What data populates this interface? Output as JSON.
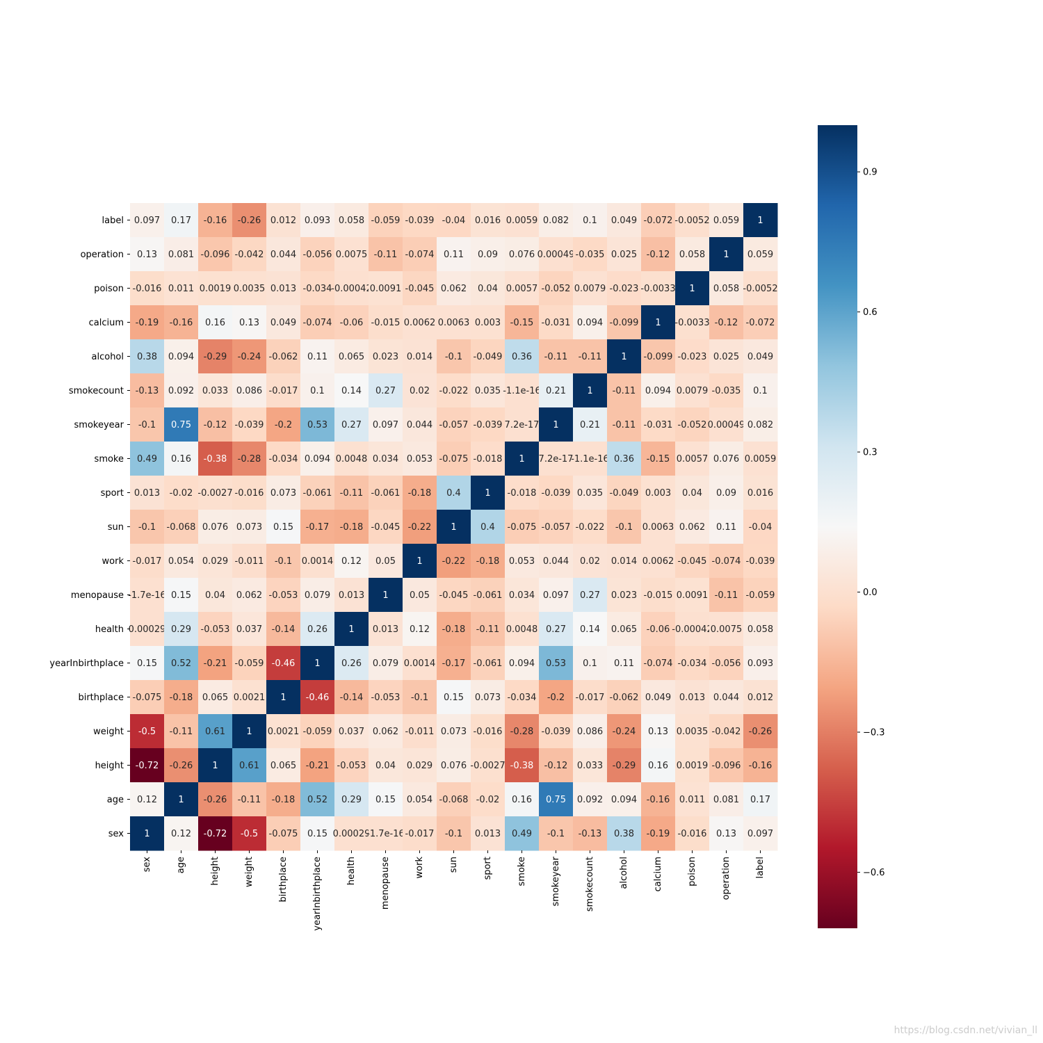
{
  "chart_data": {
    "type": "heatmap",
    "x_categories": [
      "sex",
      "age",
      "height",
      "weight",
      "birthplace",
      "yearInbirthplace",
      "health",
      "menopause",
      "work",
      "sun",
      "sport",
      "smoke",
      "smokeyear",
      "smokecount",
      "alcohol",
      "calcium",
      "poison",
      "operation",
      "label"
    ],
    "y_categories": [
      "label",
      "operation",
      "poison",
      "calcium",
      "alcohol",
      "smokecount",
      "smokeyear",
      "smoke",
      "sport",
      "sun",
      "work",
      "menopause",
      "health",
      "yearInbirthplace",
      "birthplace",
      "weight",
      "height",
      "age",
      "sex"
    ],
    "values": [
      [
        0.097,
        0.17,
        -0.16,
        -0.26,
        0.012,
        0.093,
        0.058,
        -0.059,
        -0.039,
        -0.04,
        0.016,
        0.0059,
        0.082,
        0.1,
        0.049,
        -0.072,
        -0.0052,
        0.059,
        1
      ],
      [
        0.13,
        0.081,
        -0.096,
        -0.042,
        0.044,
        -0.056,
        0.0075,
        -0.11,
        -0.074,
        0.11,
        0.09,
        0.076,
        0.00049,
        -0.035,
        0.025,
        -0.12,
        0.058,
        1,
        0.059
      ],
      [
        -0.016,
        0.011,
        0.0019,
        0.0035,
        0.013,
        -0.034,
        -0.00042,
        0.0091,
        -0.045,
        0.062,
        0.04,
        0.0057,
        -0.052,
        0.0079,
        -0.023,
        -0.0033,
        1,
        0.058,
        -0.0052
      ],
      [
        -0.19,
        -0.16,
        0.16,
        0.13,
        0.049,
        -0.074,
        -0.06,
        -0.015,
        0.0062,
        0.0063,
        0.003,
        -0.15,
        -0.031,
        0.094,
        -0.099,
        1,
        -0.0033,
        -0.12,
        -0.072
      ],
      [
        0.38,
        0.094,
        -0.29,
        -0.24,
        -0.062,
        0.11,
        0.065,
        0.023,
        0.014,
        -0.1,
        -0.049,
        0.36,
        -0.11,
        -0.11,
        1,
        -0.099,
        -0.023,
        0.025,
        0.049
      ],
      [
        -0.13,
        0.092,
        0.033,
        0.086,
        -0.017,
        0.1,
        0.14,
        0.27,
        0.02,
        -0.022,
        0.035,
        -1.1e-16,
        0.21,
        1,
        -0.11,
        0.094,
        0.0079,
        -0.035,
        0.1
      ],
      [
        -0.1,
        0.75,
        -0.12,
        -0.039,
        -0.2,
        0.53,
        0.27,
        0.097,
        0.044,
        -0.057,
        -0.039,
        7.2e-17,
        1,
        0.21,
        -0.11,
        -0.031,
        -0.052,
        0.00049,
        0.082
      ],
      [
        0.49,
        0.16,
        -0.38,
        -0.28,
        -0.034,
        0.094,
        0.0048,
        0.034,
        0.053,
        -0.075,
        -0.018,
        1,
        7.2e-17,
        -1.1e-16,
        0.36,
        -0.15,
        0.0057,
        0.076,
        0.0059
      ],
      [
        0.013,
        -0.02,
        -0.0027,
        -0.016,
        0.073,
        -0.061,
        -0.11,
        -0.061,
        -0.18,
        0.4,
        1,
        -0.018,
        -0.039,
        0.035,
        -0.049,
        0.003,
        0.04,
        0.09,
        0.016
      ],
      [
        -0.1,
        -0.068,
        0.076,
        0.073,
        0.15,
        -0.17,
        -0.18,
        -0.045,
        -0.22,
        1,
        0.4,
        -0.075,
        -0.057,
        -0.022,
        -0.1,
        0.0063,
        0.062,
        0.11,
        -0.04
      ],
      [
        -0.017,
        0.054,
        0.029,
        -0.011,
        -0.1,
        0.0014,
        0.12,
        0.05,
        1,
        -0.22,
        -0.18,
        0.053,
        0.044,
        0.02,
        0.014,
        0.0062,
        -0.045,
        -0.074,
        -0.039
      ],
      [
        -1.7e-16,
        0.15,
        0.04,
        0.062,
        -0.053,
        0.079,
        0.013,
        1,
        0.05,
        -0.045,
        -0.061,
        0.034,
        0.097,
        0.27,
        0.023,
        -0.015,
        0.0091,
        -0.11,
        -0.059
      ],
      [
        0.00029,
        0.29,
        -0.053,
        0.037,
        -0.14,
        0.26,
        1,
        0.013,
        0.12,
        -0.18,
        -0.11,
        0.0048,
        0.27,
        0.14,
        0.065,
        -0.06,
        -0.00042,
        0.0075,
        0.058
      ],
      [
        0.15,
        0.52,
        -0.21,
        -0.059,
        -0.46,
        1,
        0.26,
        0.079,
        0.0014,
        -0.17,
        -0.061,
        0.094,
        0.53,
        0.1,
        0.11,
        -0.074,
        -0.034,
        -0.056,
        0.093
      ],
      [
        -0.075,
        -0.18,
        0.065,
        0.0021,
        1,
        -0.46,
        -0.14,
        -0.053,
        -0.1,
        0.15,
        0.073,
        -0.034,
        -0.2,
        -0.017,
        -0.062,
        0.049,
        0.013,
        0.044,
        0.012
      ],
      [
        -0.5,
        -0.11,
        0.61,
        1,
        0.0021,
        -0.059,
        0.037,
        0.062,
        -0.011,
        0.073,
        -0.016,
        -0.28,
        -0.039,
        0.086,
        -0.24,
        0.13,
        0.0035,
        -0.042,
        -0.26
      ],
      [
        -0.72,
        -0.26,
        1,
        0.61,
        0.065,
        -0.21,
        -0.053,
        0.04,
        0.029,
        0.076,
        -0.0027,
        -0.38,
        -0.12,
        0.033,
        -0.29,
        0.16,
        0.0019,
        -0.096,
        -0.16
      ],
      [
        0.12,
        1,
        -0.26,
        -0.11,
        -0.18,
        0.52,
        0.29,
        0.15,
        0.054,
        -0.068,
        -0.02,
        0.16,
        0.75,
        0.092,
        0.094,
        -0.16,
        0.011,
        0.081,
        0.17
      ],
      [
        1,
        0.12,
        -0.72,
        -0.5,
        -0.075,
        0.15,
        0.00029,
        -1.7e-16,
        -0.017,
        -0.1,
        0.013,
        0.49,
        -0.1,
        -0.13,
        0.38,
        -0.19,
        -0.016,
        0.13,
        0.097
      ]
    ],
    "clim": [
      -0.72,
      1
    ],
    "cticks": [
      0.9,
      0.6,
      0.3,
      {
        "value": 0.0,
        "label": "0.0"
      },
      {
        "value": -0.3,
        "label": "−0.3"
      },
      {
        "value": -0.6,
        "label": "−0.6"
      }
    ],
    "colorscale": [
      "#67001f",
      "#b2182b",
      "#d6604d",
      "#f4a582",
      "#fddbc7",
      "#f7f7f7",
      "#d1e5f0",
      "#92c5de",
      "#4393c3",
      "#2166ac",
      "#053061"
    ],
    "watermark": "https://blog.csdn.net/vivian_ll"
  }
}
